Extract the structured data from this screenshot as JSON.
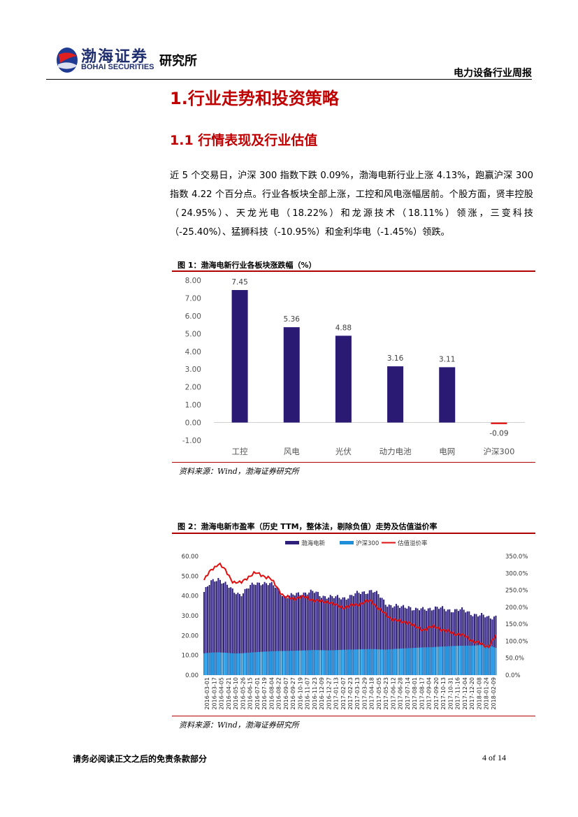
{
  "header": {
    "logo_cn": "渤海证券",
    "logo_en": "BOHAI SECURITIES",
    "institute": "研究所",
    "report_type": "电力设备行业周报"
  },
  "section": {
    "h1": "1.行业走势和投资策略",
    "h2": "1.1 行情表现及行业估值",
    "paragraph": "近 5 个交易日，沪深 300 指数下跌 0.09%，渤海电新行业上涨 4.13%，跑赢沪深 300 指数 4.22 个百分点。行业各板块全部上涨，工控和风电涨幅居前。个股方面，贤丰控股（24.95%）、天龙光电（18.22%）和龙源技术（18.11%）领涨，三变科技（-25.40%）、猛狮科技（-10.95%）和金利华电（-1.45%）领跌。"
  },
  "figure1": {
    "title": "图 1：渤海电新行业各板块涨跌幅（%）",
    "source": "资料来源：Wind，渤海证券研究所"
  },
  "figure2": {
    "title": "图 2：渤海电新市盈率（历史 TTM，整体法，剔除负值）走势及估值溢价率",
    "source": "资料来源：Wind，渤海证券研究所"
  },
  "chart_data": [
    {
      "type": "bar",
      "categories": [
        "工控",
        "风电",
        "光伏",
        "动力电池",
        "电网",
        "沪深300"
      ],
      "values": [
        7.45,
        5.36,
        4.88,
        3.16,
        3.11,
        -0.09
      ],
      "value_labels": [
        "7.45",
        "5.36",
        "4.88",
        "3.16",
        "3.11",
        "-0.09"
      ],
      "yticks": [
        "8.00",
        "7.00",
        "6.00",
        "5.00",
        "4.00",
        "3.00",
        "2.00",
        "1.00",
        "0.00",
        "-1.00"
      ],
      "ylim": [
        -1,
        8
      ],
      "colors": {
        "positive": "#2a1a74",
        "negative": "#e01010"
      }
    },
    {
      "type": "bar+line",
      "legend": [
        "渤海电新",
        "沪深300",
        "估值溢价率"
      ],
      "legend_position": "top",
      "colors": {
        "industry": "#2e1f7a",
        "hs300": "#1e8fd8",
        "premium": "#e01010"
      },
      "y_left_ticks": [
        "60.00",
        "50.00",
        "40.00",
        "30.00",
        "20.00",
        "10.00",
        "0.00"
      ],
      "y_right_ticks": [
        "350.0%",
        "300.0%",
        "250.0%",
        "200.0%",
        "150.0%",
        "100.0%",
        "50.0%",
        "0.0%"
      ],
      "y_left_lim": [
        0,
        60
      ],
      "y_right_lim": [
        0,
        350
      ],
      "x_ticks": [
        "2016-03-01",
        "2016-03-17",
        "2016-04-05",
        "2016-04-21",
        "2016-05-10",
        "2016-05-26",
        "2016-06-15",
        "2016-07-01",
        "2016-07-19",
        "2016-08-04",
        "2016-08-22",
        "2016-09-07",
        "2016-09-27",
        "2016-10-19",
        "2016-11-07",
        "2016-11-23",
        "2016-12-09",
        "2016-12-27",
        "2017-01-13",
        "2017-02-07",
        "2017-02-23",
        "2017-03-13",
        "2017-03-29",
        "2017-04-18",
        "2017-05-05",
        "2017-05-23",
        "2017-06-12",
        "2017-06-28",
        "2017-07-14",
        "2017-08-01",
        "2017-08-17",
        "2017-09-04",
        "2017-09-20",
        "2017-10-13",
        "2017-10-31",
        "2017-11-16",
        "2017-12-04",
        "2017-12-20",
        "2018-01-08",
        "2018-01-24",
        "2018-02-09"
      ],
      "industry_pe": [
        42,
        47,
        49,
        46,
        42,
        41,
        44,
        46,
        47,
        46,
        44,
        40,
        40,
        41,
        42,
        42,
        40,
        40,
        39,
        39,
        40,
        41,
        42,
        43,
        40,
        36,
        35,
        34,
        35,
        33,
        33,
        34,
        34,
        33,
        33,
        33,
        32,
        31,
        30,
        29,
        30
      ],
      "hs300_pe": [
        11.0,
        11.4,
        11.5,
        11.3,
        11.0,
        11.0,
        11.3,
        11.6,
        11.8,
        12.0,
        12.2,
        12.2,
        12.3,
        12.4,
        12.5,
        12.7,
        12.6,
        12.5,
        12.6,
        12.8,
        12.9,
        13.0,
        13.1,
        13.2,
        13.0,
        12.9,
        13.2,
        13.4,
        13.6,
        13.8,
        14.0,
        14.1,
        14.3,
        14.5,
        14.7,
        14.8,
        14.9,
        14.9,
        15.2,
        15.0,
        13.8
      ],
      "premium_pct": [
        280,
        310,
        330,
        305,
        275,
        270,
        290,
        300,
        295,
        285,
        260,
        230,
        225,
        230,
        228,
        222,
        215,
        218,
        205,
        200,
        203,
        208,
        215,
        218,
        195,
        175,
        165,
        155,
        158,
        140,
        135,
        140,
        142,
        130,
        125,
        120,
        112,
        100,
        90,
        85,
        115
      ]
    }
  ],
  "footer": {
    "note": "请务必阅读正文之后的免责条款部分",
    "page": "4 of 14"
  }
}
